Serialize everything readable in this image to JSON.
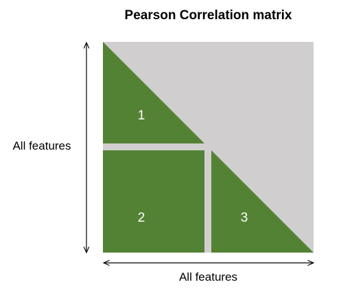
{
  "title": "Pearson Correlation matrix",
  "y_axis_label": "All features",
  "x_axis_label": "All features",
  "regions": [
    {
      "label": "1"
    },
    {
      "label": "2"
    },
    {
      "label": "3"
    }
  ],
  "colors": {
    "region_fill": "#548235",
    "background_fill": "#d0cece",
    "separator": "#d0cece",
    "arrow": "#000000",
    "label_text": "#ffffff"
  }
}
